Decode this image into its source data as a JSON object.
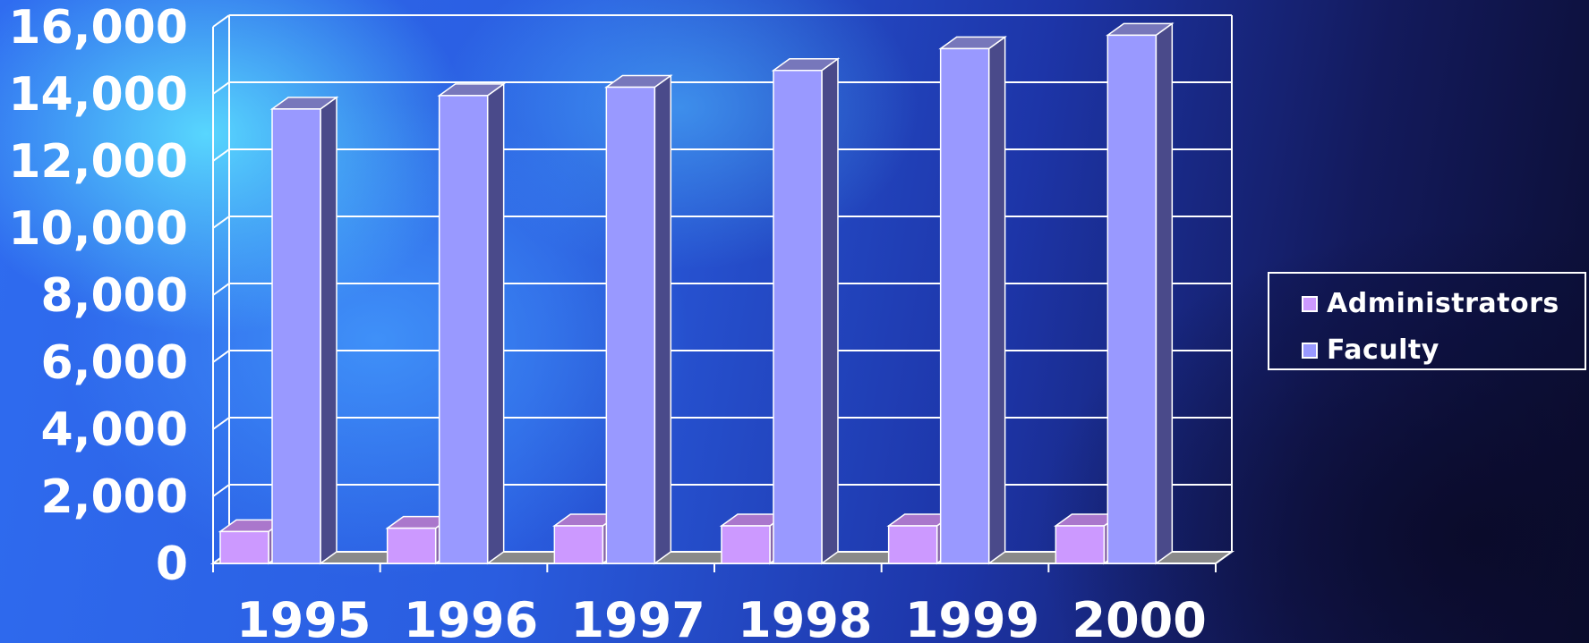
{
  "chart_data": {
    "type": "bar",
    "categories": [
      "1995",
      "1996",
      "1997",
      "1998",
      "1999",
      "2000"
    ],
    "series": [
      {
        "name": "Administrators",
        "values": [
          950,
          1050,
          1120,
          1120,
          1120,
          1120
        ],
        "color": "#cc99ff"
      },
      {
        "name": "Faculty",
        "values": [
          13550,
          13950,
          14200,
          14700,
          15350,
          15750
        ],
        "color": "#9999ff"
      }
    ],
    "ylim": [
      0,
      16000
    ],
    "yticks": [
      "0",
      "2,000",
      "4,000",
      "6,000",
      "8,000",
      "10,000",
      "12,000",
      "14,000",
      "16,000"
    ],
    "grid": true,
    "legend_position": "right",
    "title": "",
    "xlabel": "",
    "ylabel": ""
  }
}
